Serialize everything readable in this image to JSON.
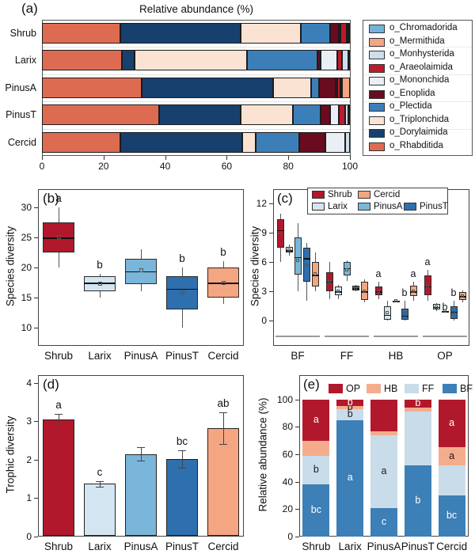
{
  "chart_data": [
    {
      "panel_label": "(a)",
      "type": "stacked_bar_horizontal",
      "title": "Relative abundance (%)",
      "categories": [
        "Shrub",
        "Larix",
        "PinusA",
        "PinusT",
        "Cercid"
      ],
      "xlim": [
        0,
        100
      ],
      "x_ticks": [
        0,
        20,
        40,
        60,
        80,
        100
      ],
      "stack_order": [
        "o_Rhabditida",
        "o_Dorylaimida",
        "o_Triplonchida",
        "o_Plectida",
        "o_Enoplida",
        "o_Mononchida",
        "o_Araeolaimida",
        "o_Monhysterida",
        "o_Mermithida",
        "o_Chromadorida"
      ],
      "legend_order": [
        "o_Chromadorida",
        "o_Mermithida",
        "o_Monhysterida",
        "o_Araeolaimida",
        "o_Mononchida",
        "o_Enoplida",
        "o_Plectida",
        "o_Triplonchida",
        "o_Dorylaimida",
        "o_Rhabditida"
      ],
      "colors": {
        "o_Chromadorida": "#74b3d8",
        "o_Mermithida": "#f4a582",
        "o_Monhysterida": "#cbdfee",
        "o_Araeolaimida": "#bc1b2b",
        "o_Mononchida": "#e9eff4",
        "o_Enoplida": "#6a0b20",
        "o_Plectida": "#3c7fb8",
        "o_Triplonchida": "#fbe3d4",
        "o_Dorylaimida": "#17406f",
        "o_Rhabditida": "#dd6b52"
      },
      "values": {
        "o_Rhabditida": [
          25.5,
          26.0,
          32.5,
          38.0,
          25.5
        ],
        "o_Dorylaimida": [
          39.0,
          4.0,
          42.5,
          26.5,
          39.5
        ],
        "o_Triplonchida": [
          19.5,
          36.5,
          12.5,
          17.0,
          4.5
        ],
        "o_Plectida": [
          9.5,
          23.0,
          2.5,
          9.0,
          14.0
        ],
        "o_Enoplida": [
          3.0,
          1.0,
          5.5,
          3.0,
          8.5
        ],
        "o_Mononchida": [
          0.5,
          5.5,
          0.5,
          3.0,
          6.5
        ],
        "o_Araeolaimida": [
          2.0,
          1.5,
          1.0,
          2.0,
          0.0
        ],
        "o_Monhysterida": [
          0.5,
          2.0,
          0.5,
          1.0,
          1.5
        ],
        "o_Mermithida": [
          0.0,
          0.0,
          2.5,
          0.0,
          0.0
        ],
        "o_Chromadorida": [
          0.5,
          0.5,
          0.0,
          0.5,
          0.0
        ]
      }
    },
    {
      "panel_label": "(b)",
      "type": "box",
      "ylabel": "Species diversity",
      "ylim": [
        7,
        33
      ],
      "y_ticks": [
        10,
        15,
        20,
        25,
        30
      ],
      "boxes": [
        {
          "cat": "Shrub",
          "color": "#b2182b",
          "low": 20,
          "q1": 22.5,
          "median": 25.0,
          "q3": 27.5,
          "high": 30,
          "mean": 25.0,
          "letter": "a"
        },
        {
          "cat": "Larix",
          "color": "#d3e5f0",
          "low": 15,
          "q1": 16.1,
          "median": 17.5,
          "q3": 18.6,
          "high": 19,
          "mean": 17.3,
          "letter": "b"
        },
        {
          "cat": "PinusA",
          "color": "#79b6da",
          "low": 16,
          "q1": 17.2,
          "median": 19.4,
          "q3": 21.5,
          "high": 23,
          "mean": 19.5,
          "letter": ""
        },
        {
          "cat": "PinusT",
          "color": "#2e6fad",
          "low": 10,
          "q1": 13.0,
          "median": 16.5,
          "q3": 18.5,
          "high": 20,
          "mean": 15.8,
          "letter": "b"
        },
        {
          "cat": "Cercid",
          "color": "#f4a582",
          "low": 14,
          "q1": 15.0,
          "median": 17.5,
          "q3": 20.0,
          "high": 21,
          "mean": 17.5,
          "letter": "b"
        }
      ]
    },
    {
      "panel_label": "(c)",
      "type": "grouped_box",
      "ylabel": "Species diversity",
      "ylim": [
        -2.6,
        13.5
      ],
      "y_ticks": [
        0,
        3,
        6,
        9,
        12
      ],
      "groups": [
        "BF",
        "FF",
        "HB",
        "OP"
      ],
      "series": [
        "Shrub",
        "Larix",
        "PinusA",
        "PinusT",
        "Cercid"
      ],
      "colors": {
        "Shrub": "#b2182b",
        "Larix": "#d3e5f0",
        "PinusA": "#79b6da",
        "PinusT": "#2e6fad",
        "Cercid": "#f4a582"
      },
      "legend_rows": [
        [
          "Shrub",
          "Cercid"
        ],
        [
          "Larix",
          "PinusA",
          "PinusT"
        ]
      ],
      "boxes": {
        "BF": [
          {
            "s": "Shrub",
            "low": 6.0,
            "q1": 7.5,
            "median": 9.3,
            "q3": 10.4,
            "high": 11.0,
            "mean": 9.0,
            "letter": ""
          },
          {
            "s": "Larix",
            "low": 6.7,
            "q1": 7.0,
            "median": 7.2,
            "q3": 7.6,
            "high": 7.8,
            "mean": 7.2,
            "letter": ""
          },
          {
            "s": "PinusA",
            "low": 3.0,
            "q1": 4.7,
            "median": 6.5,
            "q3": 8.5,
            "high": 10.0,
            "mean": 6.2,
            "letter": ""
          },
          {
            "s": "PinusT",
            "low": 2.0,
            "q1": 4.0,
            "median": 6.4,
            "q3": 7.5,
            "high": 8.0,
            "mean": 5.7,
            "letter": ""
          },
          {
            "s": "Cercid",
            "low": 3.0,
            "q1": 3.5,
            "median": 4.7,
            "q3": 6.0,
            "high": 7.0,
            "mean": 4.8,
            "letter": ""
          }
        ],
        "FF": [
          {
            "s": "Shrub",
            "low": 2.2,
            "q1": 3.0,
            "median": 4.0,
            "q3": 5.0,
            "high": 6.0,
            "mean": 4.0,
            "letter": ""
          },
          {
            "s": "Larix",
            "low": 2.2,
            "q1": 2.6,
            "median": 3.0,
            "q3": 3.5,
            "high": 3.7,
            "mean": 3.0,
            "letter": ""
          },
          {
            "s": "PinusA",
            "low": 4.1,
            "q1": 4.6,
            "median": 5.4,
            "q3": 6.0,
            "high": 6.2,
            "mean": 5.2,
            "letter": ""
          },
          {
            "s": "PinusT",
            "low": 3.0,
            "q1": 3.1,
            "median": 3.3,
            "q3": 3.6,
            "high": 3.7,
            "mean": 3.3,
            "letter": ""
          },
          {
            "s": "Cercid",
            "low": 1.9,
            "q1": 2.1,
            "median": 3.0,
            "q3": 4.0,
            "high": 4.2,
            "mean": 3.0,
            "letter": ""
          }
        ],
        "HB": [
          {
            "s": "Shrub",
            "low": 2.2,
            "q1": 2.6,
            "median": 3.0,
            "q3": 3.5,
            "high": 4.0,
            "mean": 3.0,
            "letter": "a"
          },
          {
            "s": "Larix",
            "low": 0.0,
            "q1": 0.1,
            "median": 0.6,
            "q3": 1.5,
            "high": 2.0,
            "mean": 0.8,
            "letter": ""
          },
          {
            "s": "PinusA",
            "low": 2.0,
            "q1": 2.0,
            "median": 2.0,
            "q3": 2.0,
            "high": 2.0,
            "mean": 2.0,
            "letter": ""
          },
          {
            "s": "PinusT",
            "low": 0.0,
            "q1": 0.1,
            "median": 0.5,
            "q3": 1.2,
            "high": 2.0,
            "mean": 0.7,
            "letter": "b"
          },
          {
            "s": "Cercid",
            "low": 2.0,
            "q1": 2.5,
            "median": 3.0,
            "q3": 3.6,
            "high": 4.0,
            "mean": 3.0,
            "letter": "a"
          }
        ],
        "OP": [
          {
            "s": "Shrub",
            "low": 2.0,
            "q1": 2.6,
            "median": 3.5,
            "q3": 4.6,
            "high": 5.2,
            "mean": 3.5,
            "letter": "a"
          },
          {
            "s": "Larix",
            "low": 1.0,
            "q1": 1.1,
            "median": 1.4,
            "q3": 1.7,
            "high": 1.8,
            "mean": 1.4,
            "letter": "b",
            "dx": 11,
            "dy": 15
          },
          {
            "s": "PinusA",
            "low": 1.0,
            "q1": 1.0,
            "median": 1.0,
            "q3": 1.0,
            "high": 1.0,
            "mean": 1.0,
            "letter": ""
          },
          {
            "s": "PinusT",
            "low": 0.0,
            "q1": 0.2,
            "median": 0.9,
            "q3": 1.5,
            "high": 2.0,
            "mean": 0.8,
            "letter": "b"
          },
          {
            "s": "Cercid",
            "low": 1.9,
            "q1": 2.1,
            "median": 2.5,
            "q3": 2.9,
            "high": 3.1,
            "mean": 2.5,
            "letter": ""
          }
        ]
      }
    },
    {
      "panel_label": "(d)",
      "type": "bar",
      "ylabel": "Trophic diversity",
      "ylim": [
        0,
        4.2
      ],
      "y_ticks": [
        0,
        1,
        2,
        3,
        4
      ],
      "bars": [
        {
          "cat": "Shrub",
          "value": 3.05,
          "err": 0.15,
          "color": "#b2182b",
          "letter": "a"
        },
        {
          "cat": "Larix",
          "value": 1.37,
          "err": 0.08,
          "color": "#d3e5f0",
          "letter": "c"
        },
        {
          "cat": "PinusA",
          "value": 2.15,
          "err": 0.18,
          "color": "#79b6da",
          "letter": ""
        },
        {
          "cat": "PinusT",
          "value": 2.02,
          "err": 0.22,
          "color": "#2e6fad",
          "letter": "bc"
        },
        {
          "cat": "Cercid",
          "value": 2.82,
          "err": 0.42,
          "color": "#f4a582",
          "letter": "ab"
        }
      ]
    },
    {
      "panel_label": "(e)",
      "type": "stacked_bar_vertical",
      "ylabel": "Relative abundance (%)",
      "categories": [
        "Shrub",
        "Larix",
        "PinusA",
        "PinusT",
        "Cercid"
      ],
      "ylim": [
        0,
        100
      ],
      "y_ticks": [
        0,
        20,
        40,
        60,
        80,
        100
      ],
      "legend": [
        "OP",
        "HB",
        "FF",
        "BF"
      ],
      "stack_order": [
        "BF",
        "FF",
        "HB",
        "OP"
      ],
      "colors": {
        "OP": "#b2182b",
        "HB": "#f5ac8d",
        "FF": "#c9dcea",
        "BF": "#3d7fb7"
      },
      "letter_colors": {
        "OP": "#ffffff",
        "HB": "#1a1a1a",
        "FF": "#1a1a1a",
        "BF": "#ffffff"
      },
      "values": {
        "BF": [
          38,
          85,
          21,
          52,
          30
        ],
        "FF": [
          21,
          8,
          53,
          39,
          22
        ],
        "HB": [
          11,
          2,
          3,
          3,
          13
        ],
        "OP": [
          30,
          5,
          23,
          6,
          35
        ]
      },
      "letters": {
        "BF": [
          "bc",
          "a",
          "c",
          "b",
          "bc"
        ],
        "FF": [
          "b",
          "b",
          "a",
          "",
          ""
        ],
        "HB": [
          "",
          "b",
          "",
          "",
          "a"
        ],
        "OP": [
          "a",
          "b",
          "",
          "b",
          "a"
        ]
      }
    }
  ]
}
